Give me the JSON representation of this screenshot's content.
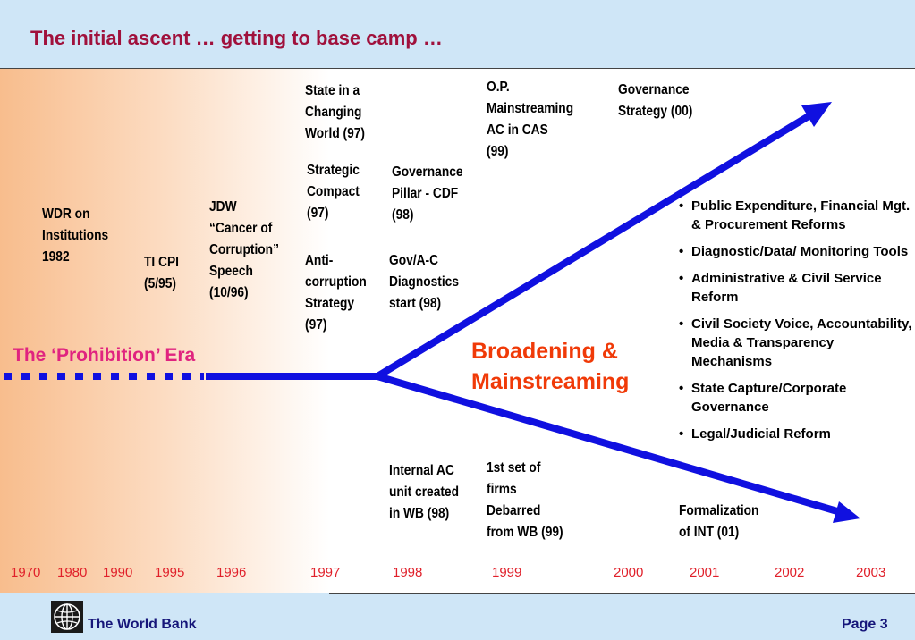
{
  "slide": {
    "title": "The initial ascent … getting to base camp …"
  },
  "milestones": [
    "WDR  on\nInstitutions\n1982",
    "TI CPI\n(5/95)",
    "JDW\n“Cancer of\nCorruption”\nSpeech\n(10/96)",
    "State in a\nChanging\nWorld (97)",
    "Strategic\nCompact\n(97)",
    "Anti-\ncorruption\nStrategy\n(97)",
    "Governance\nPillar - CDF\n(98)",
    "Gov/A-C\nDiagnostics\nstart (98)",
    "O.P.\nMainstreaming\nAC in CAS\n(99)",
    "Governance\nStrategy (00)",
    "Internal AC\nunit created\nin WB (98)",
    "1st set of\nfirms\nDebarred\nfrom WB (99)",
    "Formalization\nof INT (01)"
  ],
  "era_label": "The ‘Prohibition’ Era",
  "broadening_label": "Broadening &\nMainstreaming",
  "bullets": [
    "Public Expenditure, Financial Mgt. & Procurement Reforms",
    "Diagnostic/Data/ Monitoring Tools",
    "Administrative & Civil Service Reform",
    "Civil Society Voice, Accountability, Media & Transparency Mechanisms",
    "State Capture/Corporate Governance",
    "Legal/Judicial Reform"
  ],
  "years": [
    "1970",
    "1980",
    "1990",
    "1995",
    "1996",
    "1997",
    "1998",
    "1999",
    "2000",
    "2001",
    "2002",
    "2003"
  ],
  "colors": {
    "title": "#a0113c",
    "arrow": "#1010e0",
    "era": "#e0237f",
    "broadening": "#f03a08",
    "years": "#e0202a",
    "background": "#cfe6f7",
    "footer_text": "#16167a"
  },
  "icons": {
    "logo": "globe-icon"
  },
  "footer": {
    "org": "The World Bank",
    "page": "Page 3"
  }
}
